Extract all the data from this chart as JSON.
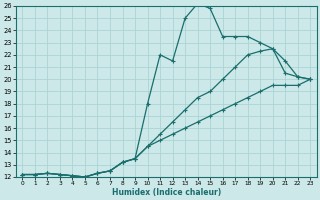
{
  "xlabel": "Humidex (Indice chaleur)",
  "xlim": [
    -0.5,
    23.5
  ],
  "ylim": [
    12,
    26
  ],
  "xticks": [
    0,
    1,
    2,
    3,
    4,
    5,
    6,
    7,
    8,
    9,
    10,
    11,
    12,
    13,
    14,
    15,
    16,
    17,
    18,
    19,
    20,
    21,
    22,
    23
  ],
  "yticks": [
    12,
    13,
    14,
    15,
    16,
    17,
    18,
    19,
    20,
    21,
    22,
    23,
    24,
    25,
    26
  ],
  "background_color": "#cce8e8",
  "grid_color": "#aad4d4",
  "line_color": "#1a6e6e",
  "line1_x": [
    0,
    1,
    2,
    3,
    4,
    5,
    6,
    7,
    8,
    9,
    10,
    11,
    12,
    13,
    14,
    15,
    16,
    17,
    18,
    19,
    20,
    21,
    22,
    23
  ],
  "line1_y": [
    12.2,
    12.2,
    12.3,
    12.2,
    12.1,
    12.0,
    12.3,
    12.5,
    13.2,
    13.5,
    18.0,
    22.0,
    21.5,
    25.0,
    26.2,
    25.8,
    23.5,
    23.5,
    23.5,
    23.0,
    22.5,
    21.5,
    20.2,
    20.0
  ],
  "line2_x": [
    0,
    1,
    2,
    3,
    4,
    5,
    6,
    7,
    8,
    9,
    10,
    11,
    12,
    13,
    14,
    15,
    16,
    17,
    18,
    19,
    20,
    21,
    22,
    23
  ],
  "line2_y": [
    12.2,
    12.2,
    12.3,
    12.2,
    12.1,
    12.0,
    12.3,
    12.5,
    13.2,
    13.5,
    14.5,
    15.5,
    16.5,
    17.5,
    18.5,
    19.0,
    20.0,
    21.0,
    22.0,
    22.3,
    22.5,
    20.5,
    20.2,
    20.0
  ],
  "line3_x": [
    0,
    1,
    2,
    3,
    4,
    5,
    6,
    7,
    8,
    9,
    10,
    11,
    12,
    13,
    14,
    15,
    16,
    17,
    18,
    19,
    20,
    21,
    22,
    23
  ],
  "line3_y": [
    12.2,
    12.2,
    12.3,
    12.2,
    12.1,
    12.0,
    12.3,
    12.5,
    13.2,
    13.5,
    14.5,
    15.0,
    15.5,
    16.0,
    16.5,
    17.0,
    17.5,
    18.0,
    18.5,
    19.0,
    19.5,
    19.5,
    19.5,
    20.0
  ]
}
